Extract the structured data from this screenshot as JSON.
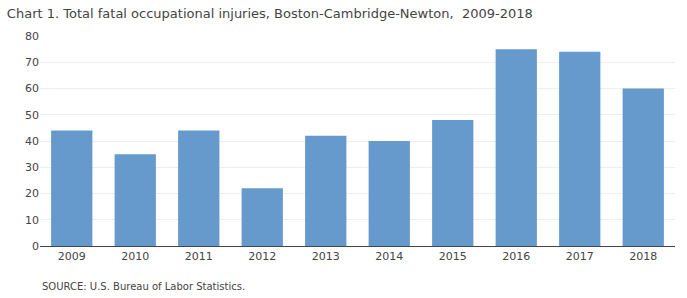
{
  "chart_data": {
    "type": "bar",
    "title": "Chart 1. Total fatal occupational injuries, Boston-Cambridge-Newton,  2009-2018",
    "categories": [
      "2009",
      "2010",
      "2011",
      "2012",
      "2013",
      "2014",
      "2015",
      "2016",
      "2017",
      "2018"
    ],
    "values": [
      44,
      35,
      44,
      22,
      42,
      40,
      48,
      75,
      74,
      60
    ],
    "color": "#6699CC",
    "ylim": [
      0,
      80
    ],
    "yticks": [
      0,
      10,
      20,
      30,
      40,
      50,
      60,
      70,
      80
    ],
    "grid": true,
    "annotations": [
      "SOURCE: U.S. Bureau of Labor Statistics."
    ]
  }
}
